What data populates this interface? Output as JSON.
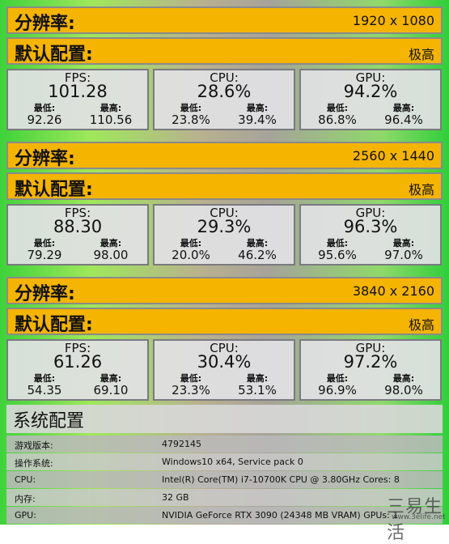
{
  "blocks": [
    {
      "resolution_label": "分辨率:",
      "resolution": "1920 x 1080",
      "preset_label": "默认配置:",
      "preset": "极高",
      "stats": [
        {
          "title": "FPS:",
          "value": "101.28",
          "min_label": "最低:",
          "min": "92.26",
          "max_label": "最高:",
          "max": "110.56"
        },
        {
          "title": "CPU:",
          "value": "28.6%",
          "min_label": "最低:",
          "min": "23.8%",
          "max_label": "最高:",
          "max": "39.4%"
        },
        {
          "title": "GPU:",
          "value": "94.2%",
          "min_label": "最低:",
          "min": "86.8%",
          "max_label": "最高:",
          "max": "96.4%"
        }
      ]
    },
    {
      "resolution_label": "分辨率:",
      "resolution": "2560 x 1440",
      "preset_label": "默认配置:",
      "preset": "极高",
      "stats": [
        {
          "title": "FPS:",
          "value": "88.30",
          "min_label": "最低:",
          "min": "79.29",
          "max_label": "最高:",
          "max": "98.00"
        },
        {
          "title": "CPU:",
          "value": "29.3%",
          "min_label": "最低:",
          "min": "20.0%",
          "max_label": "最高:",
          "max": "46.2%"
        },
        {
          "title": "GPU:",
          "value": "96.3%",
          "min_label": "最低:",
          "min": "95.6%",
          "max_label": "最高:",
          "max": "97.0%"
        }
      ]
    },
    {
      "resolution_label": "分辨率:",
      "resolution": "3840 x 2160",
      "preset_label": "默认配置:",
      "preset": "极高",
      "stats": [
        {
          "title": "FPS:",
          "value": "61.26",
          "min_label": "最低:",
          "min": "54.35",
          "max_label": "最高:",
          "max": "69.10"
        },
        {
          "title": "CPU:",
          "value": "30.4%",
          "min_label": "最低:",
          "min": "23.3%",
          "max_label": "最高:",
          "max": "53.1%"
        },
        {
          "title": "GPU:",
          "value": "97.2%",
          "min_label": "最低:",
          "min": "96.9%",
          "max_label": "最高:",
          "max": "98.0%"
        }
      ]
    }
  ],
  "system": {
    "title": "系统配置",
    "rows": [
      [
        "游戏版本:",
        "4792145"
      ],
      [
        "操作系统:",
        "Windows10 x64, Service pack 0"
      ],
      [
        "CPU:",
        "Intel(R) Core(TM) i7-10700K CPU @ 3.80GHz Cores: 8"
      ],
      [
        "内存:",
        "32 GB"
      ],
      [
        "GPU:",
        "NVIDIA GeForce RTX 3090 (24348 MB VRAM) GPUs: 1"
      ]
    ]
  },
  "watermark": {
    "brand": "三易生活",
    "url": "www.3elife.net"
  }
}
